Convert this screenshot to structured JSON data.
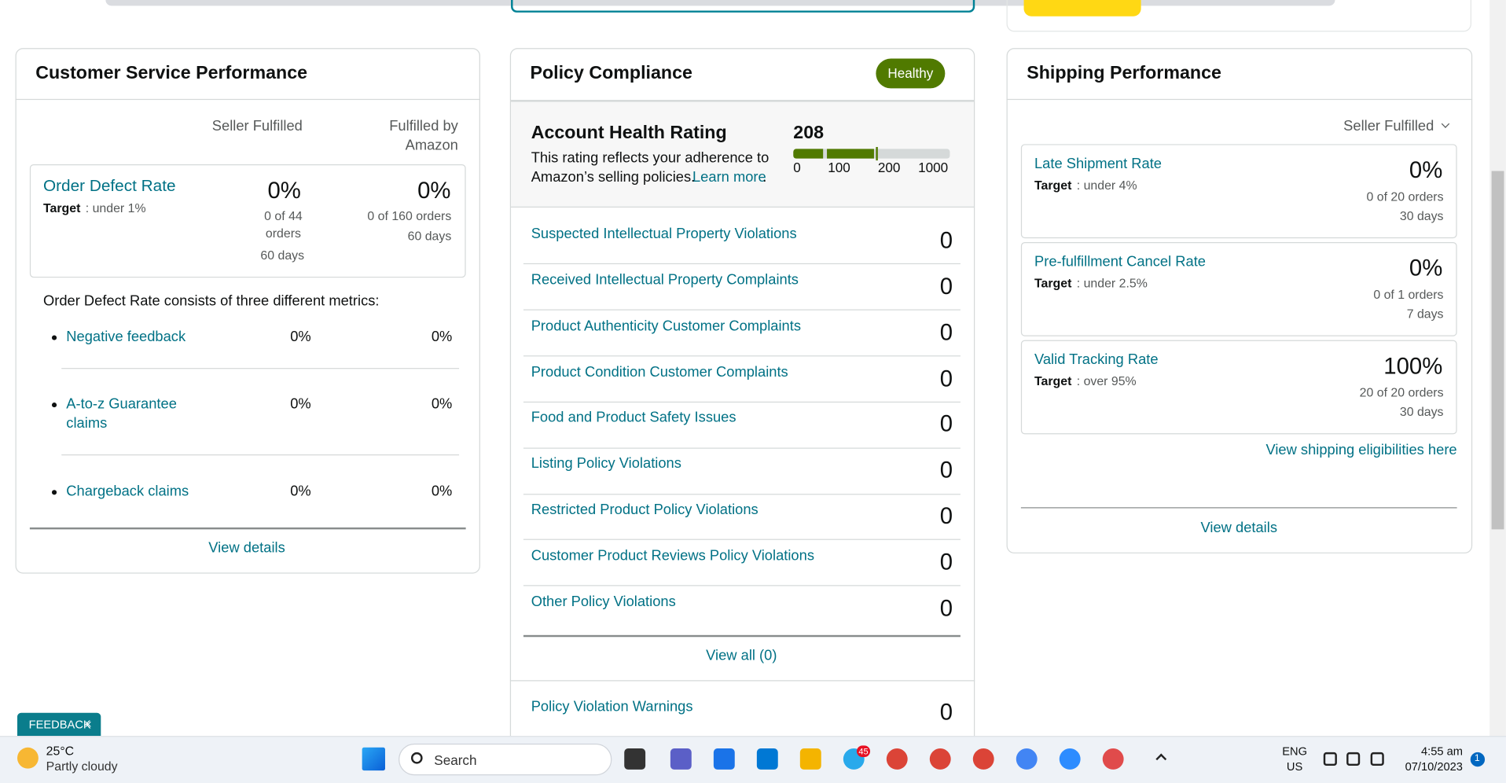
{
  "customer_service": {
    "title": "Customer Service Performance",
    "columns": [
      "Seller Fulfilled",
      "Fulfilled by Amazon"
    ],
    "order_defect_rate": {
      "name": "Order Defect Rate",
      "target_label": "Target",
      "target": ": under 1%",
      "seller_value": "0%",
      "seller_orders": "0 of 44 orders",
      "seller_period": "60 days",
      "fba_value": "0%",
      "fba_orders": "0 of 160 orders",
      "fba_period": "60 days"
    },
    "intro": "Order Defect Rate consists of three different metrics:",
    "metrics": [
      {
        "name": "Negative feedback",
        "seller": "0%",
        "fba": "0%"
      },
      {
        "name": "A-to-z Guarantee claims",
        "seller": "0%",
        "fba": "0%"
      },
      {
        "name": "Chargeback claims",
        "seller": "0%",
        "fba": "0%"
      }
    ],
    "view_details": "View details"
  },
  "policy_compliance": {
    "title": "Policy Compliance",
    "status": "Healthy",
    "rating_title": "Account Health Rating",
    "score": "208",
    "description": "This rating reflects your adherence to Amazon’s selling policies.",
    "learn_more": "Learn more",
    "description_end": ".",
    "scale": [
      "0",
      "100",
      "200",
      "1000"
    ],
    "items": [
      {
        "name": "Suspected Intellectual Property Violations",
        "count": "0"
      },
      {
        "name": "Received Intellectual Property Complaints",
        "count": "0"
      },
      {
        "name": "Product Authenticity Customer Complaints",
        "count": "0"
      },
      {
        "name": "Product Condition Customer Complaints",
        "count": "0"
      },
      {
        "name": "Food and Product Safety Issues",
        "count": "0"
      },
      {
        "name": "Listing Policy Violations",
        "count": "0"
      },
      {
        "name": "Restricted Product Policy Violations",
        "count": "0"
      },
      {
        "name": "Customer Product Reviews Policy Violations",
        "count": "0"
      },
      {
        "name": "Other Policy Violations",
        "count": "0"
      }
    ],
    "view_all": "View all (0)",
    "warnings": {
      "name": "Policy Violation Warnings",
      "count": "0"
    }
  },
  "shipping": {
    "title": "Shipping Performance",
    "filter": "Seller Fulfilled",
    "metrics": [
      {
        "name": "Late Shipment Rate",
        "target_label": "Target",
        "target": ": under 4%",
        "value": "0%",
        "orders": "0 of 20 orders",
        "period": "30 days"
      },
      {
        "name": "Pre-fulfillment Cancel Rate",
        "target_label": "Target",
        "target": ": under 2.5%",
        "value": "0%",
        "orders": "0 of 1 orders",
        "period": "7 days"
      },
      {
        "name": "Valid Tracking Rate",
        "target_label": "Target",
        "target": ": over 95%",
        "value": "100%",
        "orders": "20 of 20 orders",
        "period": "30 days"
      }
    ],
    "eligibility_link": "View shipping eligibilities here",
    "view_details": "View details"
  },
  "feedback": "FEEDBACK",
  "taskbar": {
    "temperature": "25°C",
    "weather": "Partly cloudy",
    "search": "Search",
    "telegram_badge": "45",
    "language": "ENG",
    "region": "US",
    "time": "4:55 am",
    "date": "07/10/2023",
    "notifications": "1"
  }
}
